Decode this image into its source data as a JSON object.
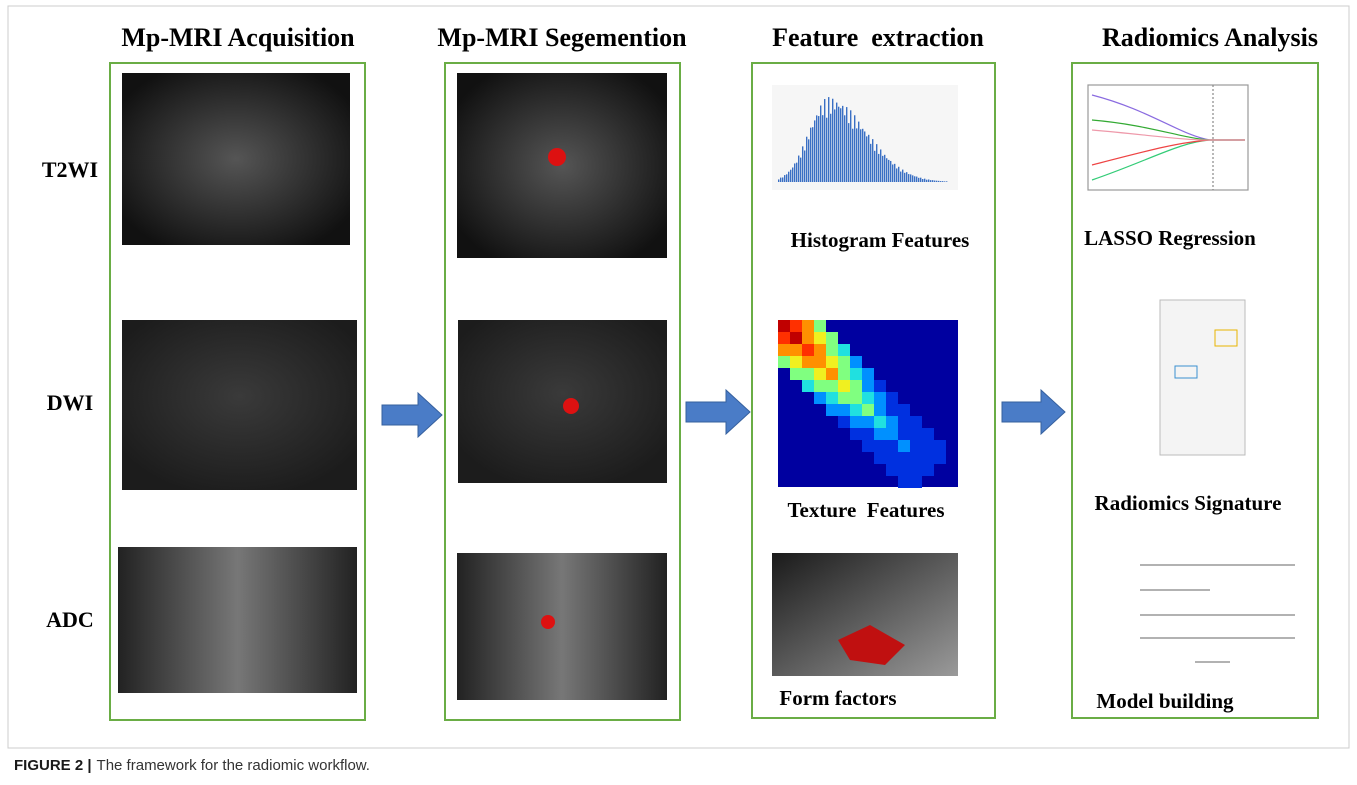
{
  "columns": [
    {
      "title": "Mp-MRI Acquisition"
    },
    {
      "title": "Mp-MRI Segemention"
    },
    {
      "title": "Feature  extraction",
      "panels": [
        "Histogram Features",
        "Texture  Features",
        "Form factors"
      ]
    },
    {
      "title": "Radiomics Analysis",
      "panels": [
        "LASSO Regression",
        "Radiomics Signature",
        "Model building"
      ]
    }
  ],
  "rows": [
    "T2WI",
    "DWI",
    "ADC"
  ],
  "caption": {
    "label": "FIGURE 2 |",
    "text": "The framework for the radiomic workflow."
  }
}
